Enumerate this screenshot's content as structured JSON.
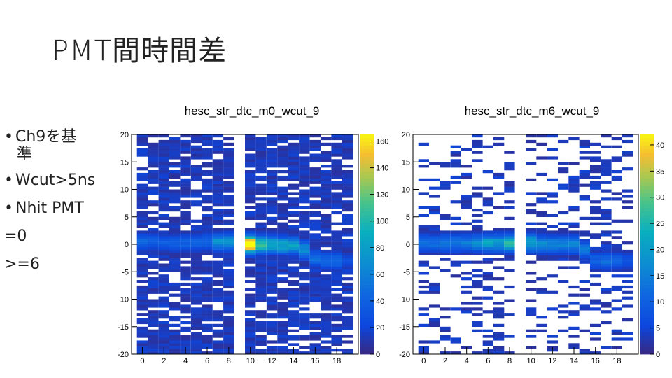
{
  "slide": {
    "title": "PMT間時間差",
    "bullets": [
      {
        "text": "Ch9を基",
        "cont": "準"
      },
      {
        "text": "Wcut>5ns"
      },
      {
        "text": "Nhit PMT"
      }
    ],
    "extra_lines": [
      "=0",
      ">=6"
    ]
  },
  "chart_data": [
    {
      "type": "heatmap",
      "title": "hesc_str_dtc_m0_wcut_9",
      "xlim": [
        -1,
        20
      ],
      "ylim": [
        -20,
        20
      ],
      "x_ticks": [
        0,
        2,
        4,
        6,
        8,
        10,
        12,
        14,
        16,
        18
      ],
      "y_ticks": [
        20,
        15,
        10,
        5,
        0,
        -5,
        -10,
        -15,
        -20
      ],
      "colorbar_ticks": [
        160,
        140,
        120,
        100,
        80,
        60,
        40,
        20,
        0
      ],
      "z_max": 165,
      "empty_channels": [
        9
      ],
      "ridge_peak_dt": {
        "0": 0.5,
        "1": 0.5,
        "2": 0.3,
        "3": 0.3,
        "4": 0.3,
        "5": 0.3,
        "6": 0.6,
        "7": 0.4,
        "8": 0.4,
        "10": 0,
        "11": 0,
        "12": 0,
        "13": -0.2,
        "14": -0.2,
        "15": -1.0,
        "16": -2.5,
        "17": -3.0,
        "18": -3.0,
        "19": -3.0
      },
      "ridge_peak_count": {
        "0": 40,
        "1": 35,
        "2": 35,
        "3": 38,
        "4": 40,
        "5": 38,
        "6": 45,
        "7": 70,
        "8": 70,
        "10": 165,
        "11": 110,
        "12": 95,
        "13": 85,
        "14": 80,
        "15": 70,
        "16": 45,
        "17": 45,
        "18": 45,
        "19": 25
      }
    },
    {
      "type": "heatmap",
      "title": "hesc_str_dtc_m6_wcut_9",
      "xlim": [
        -1,
        20
      ],
      "ylim": [
        -20,
        20
      ],
      "x_ticks": [
        0,
        2,
        4,
        6,
        8,
        10,
        12,
        14,
        16,
        18
      ],
      "y_ticks": [
        20,
        15,
        10,
        5,
        0,
        -5,
        -10,
        -15,
        -20
      ],
      "colorbar_ticks": [
        40,
        35,
        30,
        25,
        20,
        15,
        10,
        5,
        0
      ],
      "z_max": 42,
      "empty_channels": [
        9
      ],
      "ridge_peak_dt": {
        "0": 0.3,
        "1": 0.3,
        "2": 0.3,
        "3": 0.3,
        "4": 0.3,
        "5": 0.3,
        "6": 0.3,
        "7": 0.3,
        "8": 0.3,
        "10": 0.3,
        "11": 0,
        "12": 0,
        "13": 0,
        "14": 0,
        "15": -1.0,
        "16": -3.0,
        "17": -3.0,
        "18": -3.0,
        "19": -3.0
      },
      "ridge_peak_count": {
        "0": 12,
        "1": 12,
        "2": 14,
        "3": 14,
        "4": 14,
        "5": 16,
        "6": 20,
        "7": 20,
        "8": 25,
        "10": 22,
        "11": 18,
        "12": 16,
        "13": 16,
        "14": 16,
        "15": 14,
        "16": 10,
        "17": 12,
        "18": 10,
        "19": 8
      }
    }
  ]
}
